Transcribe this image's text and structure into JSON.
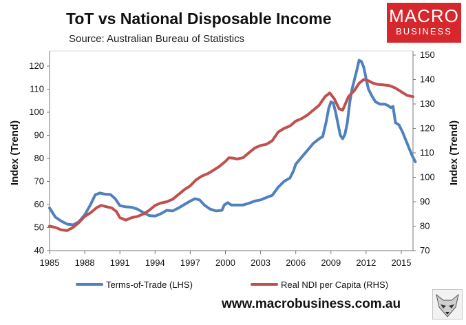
{
  "header": {
    "title": "ToT vs National Disposable Income",
    "subtitle": "Source: Australian Bureau of Statistics"
  },
  "logo": {
    "line1": "MACRO",
    "line2": "BUSINESS",
    "color": "#d6272c"
  },
  "footer": {
    "url": "www.macrobusiness.com.au"
  },
  "chart_data": {
    "type": "line",
    "x_range": [
      1985,
      2016
    ],
    "x_ticks": [
      "1985",
      "1988",
      "1991",
      "1994",
      "1997",
      "2000",
      "2003",
      "2006",
      "2009",
      "2012",
      "2015"
    ],
    "left_axis": {
      "label": "Index (Trend)",
      "ylim": [
        40,
        125
      ],
      "ticks": [
        "40",
        "50",
        "60",
        "70",
        "80",
        "90",
        "100",
        "110",
        "120"
      ]
    },
    "right_axis": {
      "label": "Index (Trend)",
      "ylim": [
        70,
        150
      ],
      "ticks": [
        "70",
        "80",
        "90",
        "100",
        "110",
        "120",
        "130",
        "140",
        "150"
      ]
    },
    "grid": false,
    "legend_position": "bottom",
    "series": [
      {
        "name": "Terms-of-Trade (LHS)",
        "axis": "left",
        "color": "#4f81bd",
        "points": [
          [
            1985.0,
            58.5
          ],
          [
            1985.5,
            54.5
          ],
          [
            1986.0,
            52.8
          ],
          [
            1986.5,
            51.5
          ],
          [
            1987.0,
            51.2
          ],
          [
            1987.5,
            52.5
          ],
          [
            1988.0,
            55.5
          ],
          [
            1988.5,
            60.0
          ],
          [
            1988.9,
            64.2
          ],
          [
            1989.3,
            65.0
          ],
          [
            1989.7,
            64.5
          ],
          [
            1990.2,
            64.3
          ],
          [
            1990.6,
            62.5
          ],
          [
            1991.0,
            59.5
          ],
          [
            1991.5,
            59.0
          ],
          [
            1992.0,
            58.8
          ],
          [
            1992.5,
            58.0
          ],
          [
            1993.0,
            56.5
          ],
          [
            1993.5,
            55.2
          ],
          [
            1994.0,
            55.0
          ],
          [
            1994.5,
            56.0
          ],
          [
            1995.0,
            57.5
          ],
          [
            1995.5,
            57.2
          ],
          [
            1996.0,
            58.5
          ],
          [
            1996.5,
            60.0
          ],
          [
            1997.0,
            61.5
          ],
          [
            1997.4,
            62.5
          ],
          [
            1997.8,
            62.0
          ],
          [
            1998.2,
            59.8
          ],
          [
            1998.7,
            58.0
          ],
          [
            1999.2,
            57.2
          ],
          [
            1999.7,
            57.5
          ],
          [
            1999.9,
            59.8
          ],
          [
            2000.2,
            60.8
          ],
          [
            2000.5,
            59.8
          ],
          [
            2001.0,
            59.8
          ],
          [
            2001.5,
            59.8
          ],
          [
            2002.0,
            60.5
          ],
          [
            2002.5,
            61.5
          ],
          [
            2003.0,
            62.0
          ],
          [
            2003.5,
            63.0
          ],
          [
            2004.0,
            64.0
          ],
          [
            2004.5,
            67.5
          ],
          [
            2005.0,
            70.0
          ],
          [
            2005.5,
            71.5
          ],
          [
            2005.8,
            74.5
          ],
          [
            2006.0,
            77.5
          ],
          [
            2006.5,
            80.5
          ],
          [
            2007.0,
            83.5
          ],
          [
            2007.5,
            86.5
          ],
          [
            2008.0,
            88.5
          ],
          [
            2008.3,
            89.5
          ],
          [
            2008.6,
            96.0
          ],
          [
            2008.8,
            101.5
          ],
          [
            2009.0,
            104.5
          ],
          [
            2009.2,
            104.0
          ],
          [
            2009.4,
            100.0
          ],
          [
            2009.6,
            95.0
          ],
          [
            2009.8,
            90.0
          ],
          [
            2010.0,
            88.5
          ],
          [
            2010.2,
            90.5
          ],
          [
            2010.4,
            95.5
          ],
          [
            2010.6,
            104.0
          ],
          [
            2010.8,
            110.0
          ],
          [
            2011.0,
            114.0
          ],
          [
            2011.2,
            118.0
          ],
          [
            2011.4,
            122.5
          ],
          [
            2011.6,
            122.0
          ],
          [
            2011.8,
            119.5
          ],
          [
            2012.0,
            114.5
          ],
          [
            2012.2,
            110.0
          ],
          [
            2012.5,
            107.0
          ],
          [
            2012.8,
            104.5
          ],
          [
            2013.2,
            103.5
          ],
          [
            2013.6,
            103.5
          ],
          [
            2013.9,
            102.8
          ],
          [
            2014.1,
            102.0
          ],
          [
            2014.3,
            102.5
          ],
          [
            2014.5,
            95.5
          ],
          [
            2014.8,
            94.5
          ],
          [
            2015.1,
            91.5
          ],
          [
            2015.5,
            86.5
          ],
          [
            2015.9,
            81.5
          ],
          [
            2016.2,
            78.5
          ]
        ]
      },
      {
        "name": "Real NDI per Capita (RHS)",
        "axis": "right",
        "color": "#c0504d",
        "points": [
          [
            1985.0,
            80.0
          ],
          [
            1985.5,
            79.5
          ],
          [
            1986.0,
            78.5
          ],
          [
            1986.5,
            78.2
          ],
          [
            1987.0,
            79.5
          ],
          [
            1987.5,
            81.5
          ],
          [
            1988.0,
            84.0
          ],
          [
            1988.5,
            85.5
          ],
          [
            1989.0,
            87.5
          ],
          [
            1989.4,
            88.5
          ],
          [
            1989.8,
            88.0
          ],
          [
            1990.3,
            87.5
          ],
          [
            1990.7,
            86.0
          ],
          [
            1991.0,
            83.5
          ],
          [
            1991.5,
            82.5
          ],
          [
            1992.0,
            83.5
          ],
          [
            1992.5,
            84.0
          ],
          [
            1993.0,
            85.0
          ],
          [
            1993.5,
            86.5
          ],
          [
            1994.0,
            88.5
          ],
          [
            1994.5,
            89.5
          ],
          [
            1995.0,
            90.0
          ],
          [
            1995.5,
            91.0
          ],
          [
            1996.0,
            93.0
          ],
          [
            1996.5,
            95.0
          ],
          [
            1997.0,
            96.5
          ],
          [
            1997.5,
            99.0
          ],
          [
            1998.0,
            100.5
          ],
          [
            1998.5,
            101.5
          ],
          [
            1999.0,
            103.0
          ],
          [
            1999.5,
            104.5
          ],
          [
            2000.0,
            106.5
          ],
          [
            2000.3,
            108.0
          ],
          [
            2000.7,
            107.8
          ],
          [
            2001.0,
            107.5
          ],
          [
            2001.5,
            108.0
          ],
          [
            2002.0,
            110.0
          ],
          [
            2002.5,
            112.0
          ],
          [
            2003.0,
            113.0
          ],
          [
            2003.5,
            113.5
          ],
          [
            2004.0,
            115.0
          ],
          [
            2004.5,
            118.5
          ],
          [
            2005.0,
            120.0
          ],
          [
            2005.5,
            121.0
          ],
          [
            2006.0,
            123.0
          ],
          [
            2006.5,
            124.0
          ],
          [
            2007.0,
            125.5
          ],
          [
            2007.5,
            127.5
          ],
          [
            2008.0,
            129.5
          ],
          [
            2008.5,
            133.0
          ],
          [
            2008.9,
            134.5
          ],
          [
            2009.3,
            132.0
          ],
          [
            2009.7,
            128.0
          ],
          [
            2010.0,
            127.5
          ],
          [
            2010.5,
            133.0
          ],
          [
            2011.0,
            135.5
          ],
          [
            2011.4,
            138.5
          ],
          [
            2011.8,
            140.0
          ],
          [
            2012.2,
            139.5
          ],
          [
            2012.6,
            138.5
          ],
          [
            2013.0,
            138.0
          ],
          [
            2013.5,
            137.8
          ],
          [
            2014.0,
            137.5
          ],
          [
            2014.5,
            136.5
          ],
          [
            2015.0,
            135.0
          ],
          [
            2015.5,
            133.5
          ],
          [
            2016.0,
            133.0
          ]
        ]
      }
    ]
  }
}
